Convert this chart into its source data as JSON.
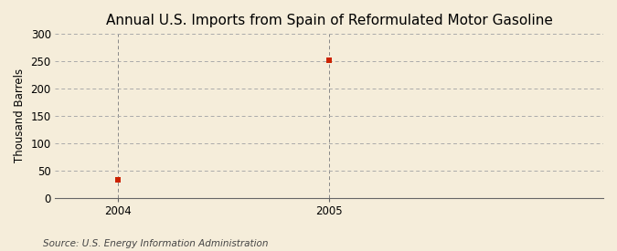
{
  "title": "Annual U.S. Imports from Spain of Reformulated Motor Gasoline",
  "ylabel": "Thousand Barrels",
  "source": "Source: U.S. Energy Information Administration",
  "x_data": [
    2004,
    2005
  ],
  "y_data": [
    33,
    251
  ],
  "xlim": [
    2003.7,
    2006.3
  ],
  "ylim": [
    0,
    300
  ],
  "yticks": [
    0,
    50,
    100,
    150,
    200,
    250,
    300
  ],
  "xticks": [
    2004,
    2005
  ],
  "point_color": "#cc2200",
  "bg_color": "#f5edda",
  "grid_color": "#aaaaaa",
  "vline_color": "#888888",
  "title_fontsize": 11,
  "label_fontsize": 8.5,
  "tick_fontsize": 8.5,
  "source_fontsize": 7.5
}
